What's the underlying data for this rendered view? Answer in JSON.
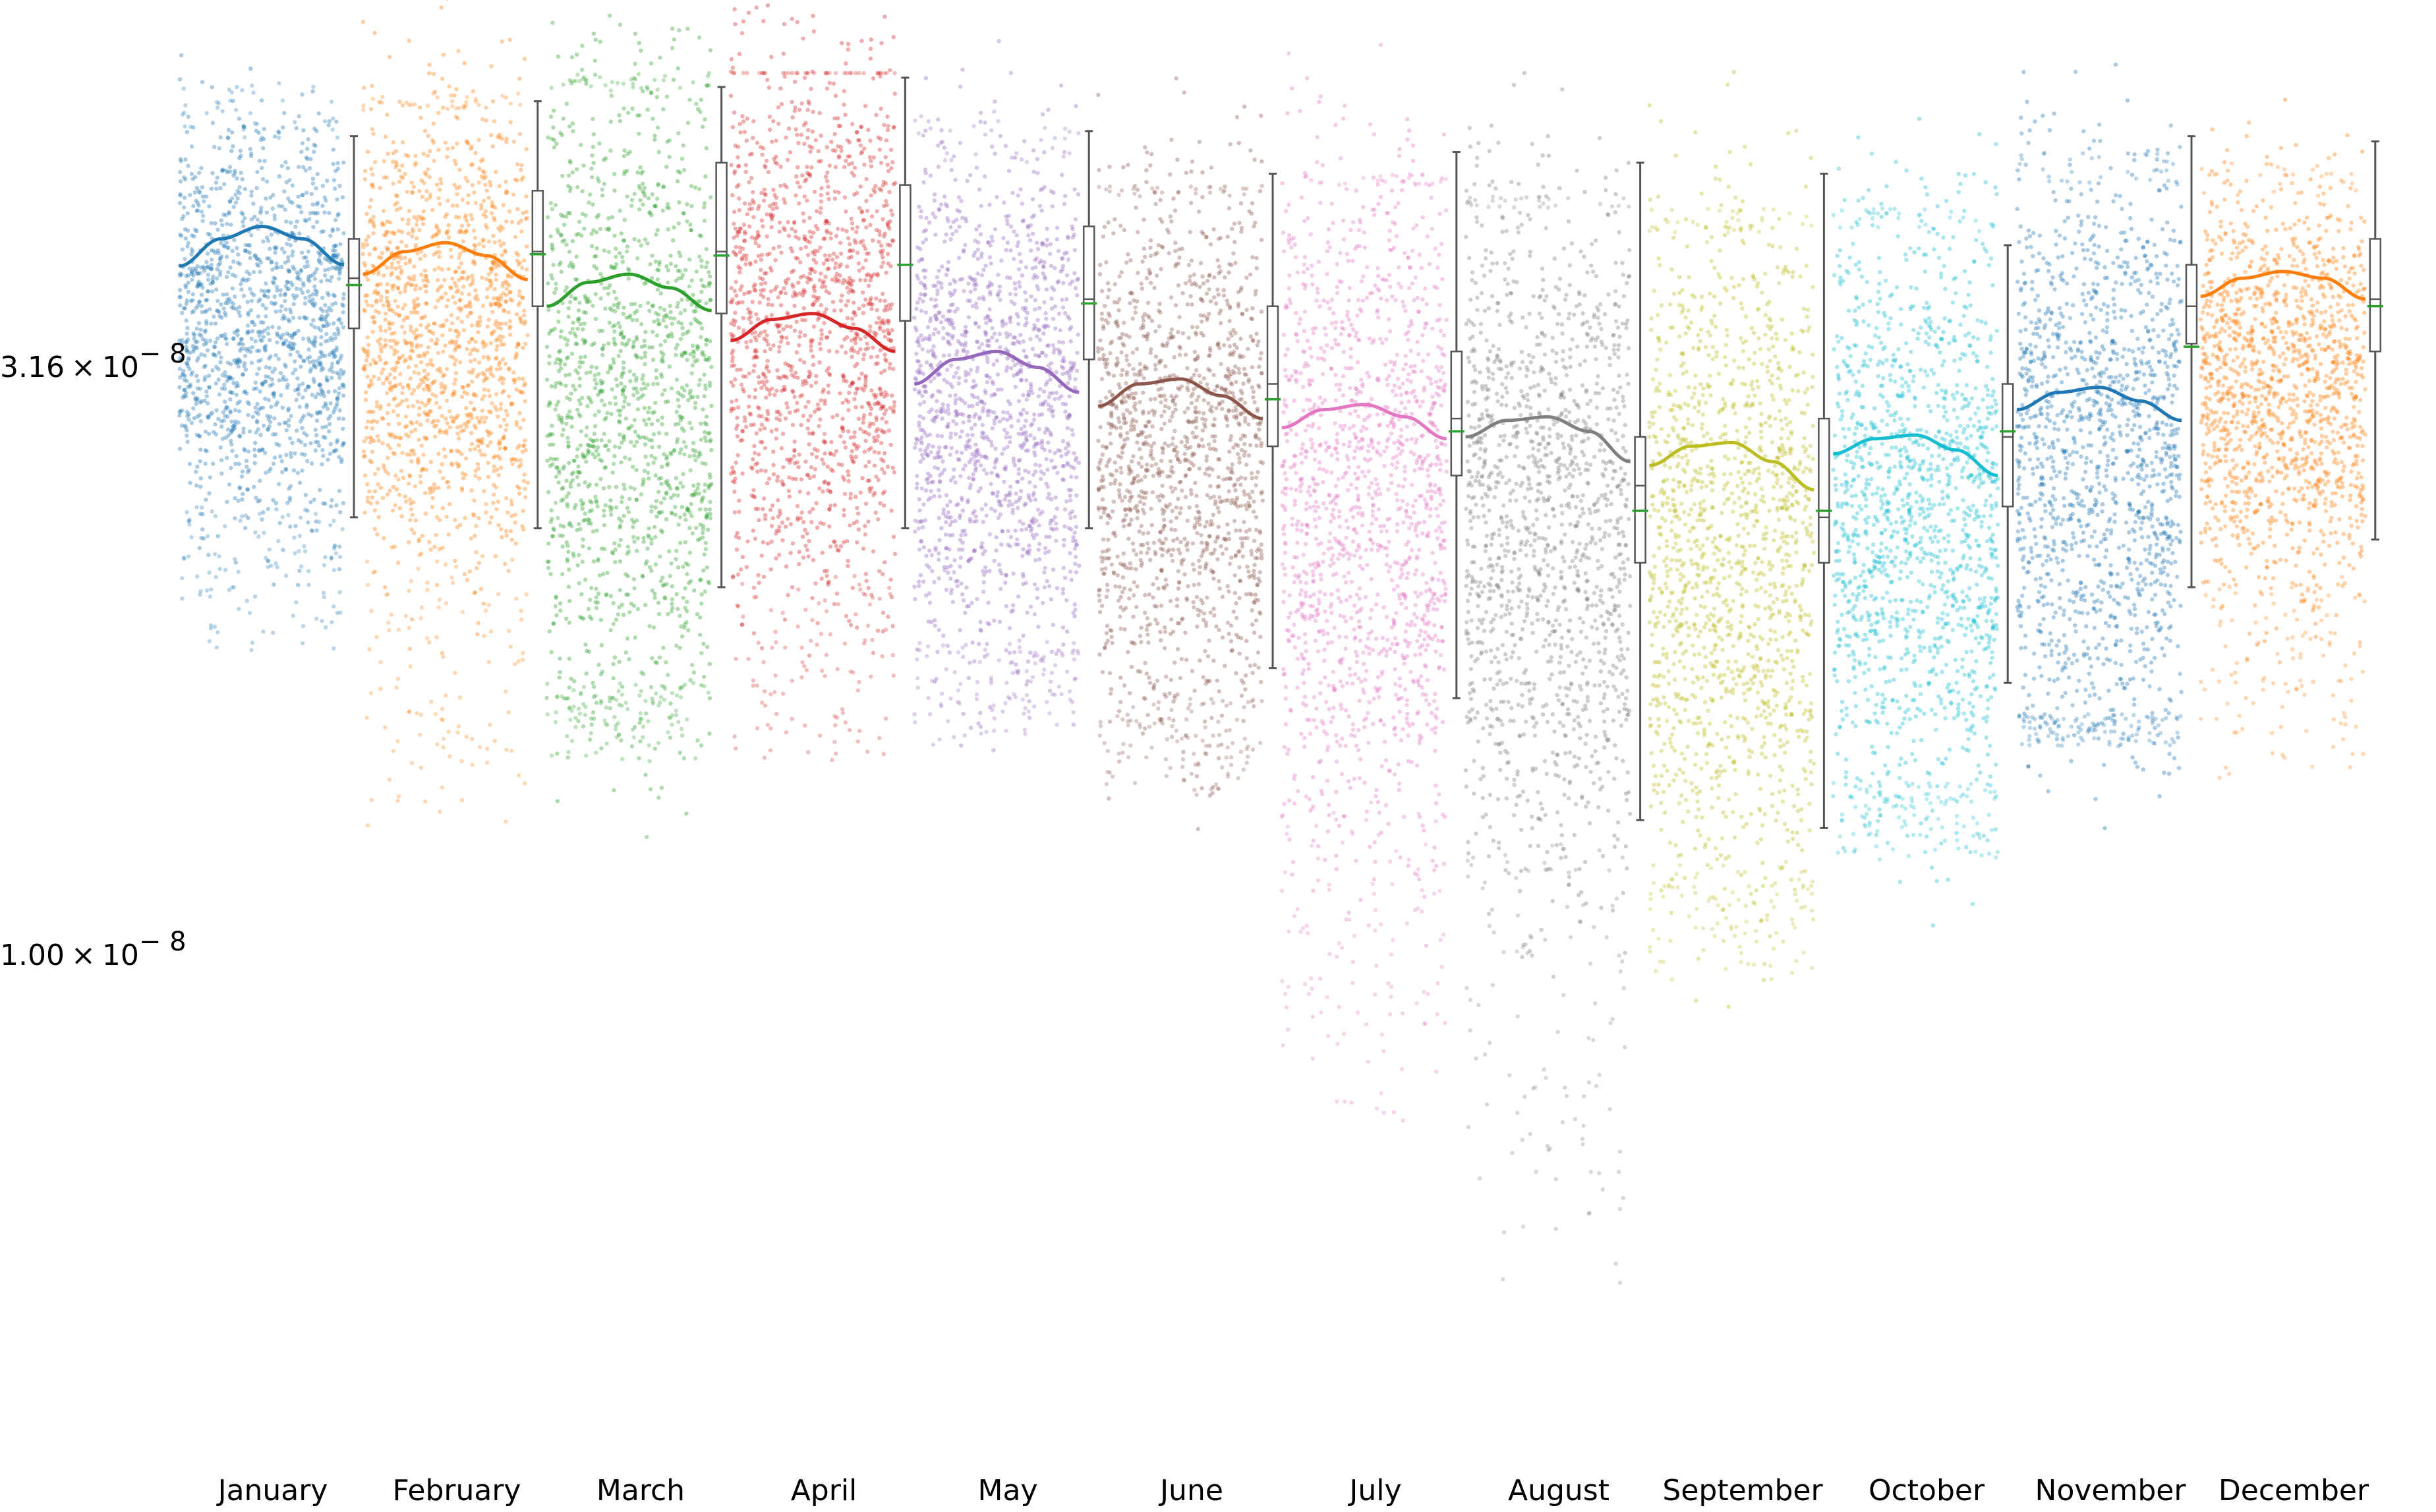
{
  "chart_data": {
    "type": "scatter",
    "subtype": "monthly strip plot with mean curve and box plot per month",
    "title": "",
    "xlabel": "",
    "ylabel": "",
    "y_scale": "log",
    "ylim": [
      4e-09,
      7e-08
    ],
    "y_ticks": [
      {
        "value": 3.16e-08,
        "mantissa": "3.16",
        "times": "×",
        "base": "10",
        "exponent": "− 8"
      },
      {
        "value": 1e-08,
        "mantissa": "1.00",
        "times": "×",
        "base": "10",
        "exponent": "− 8"
      }
    ],
    "categories": [
      "January",
      "February",
      "March",
      "April",
      "May",
      "June",
      "July",
      "August",
      "September",
      "October",
      "November",
      "December"
    ],
    "colors": [
      "#1f77b4",
      "#ff7f0e",
      "#2ca02c",
      "#d62728",
      "#9467bd",
      "#8c564b",
      "#e377c2",
      "#7f7f7f",
      "#bcbd22",
      "#17becf",
      "#1f77b4",
      "#ff7f0e"
    ],
    "grid": false,
    "legend": "none",
    "series": [
      {
        "name": "January",
        "mean_curve": [
          3.84e-08,
          4.05e-08,
          4.15e-08,
          4.05e-08,
          3.85e-08
        ],
        "box": {
          "whisker_low": 2.35e-08,
          "q1": 3.4e-08,
          "median": 3.75e-08,
          "q3": 4.05e-08,
          "whisker_high": 4.95e-08,
          "mean": 3.7e-08
        },
        "points": {
          "core_low": 2.4e-08,
          "core_high": 4.9e-08,
          "min": 1.8e-08,
          "max": 5.5e-08
        }
      },
      {
        "name": "February",
        "mean_curve": [
          3.78e-08,
          3.95e-08,
          4.02e-08,
          3.92e-08,
          3.74e-08
        ],
        "box": {
          "whisker_low": 2.3e-08,
          "q1": 3.55e-08,
          "median": 3.95e-08,
          "q3": 4.45e-08,
          "whisker_high": 5.3e-08,
          "mean": 3.93e-08
        },
        "points": {
          "core_low": 2.2e-08,
          "core_high": 5.2e-08,
          "min": 1.25e-08,
          "max": 5.4e-08
        }
      },
      {
        "name": "March",
        "mean_curve": [
          3.55e-08,
          3.72e-08,
          3.78e-08,
          3.68e-08,
          3.52e-08
        ],
        "box": {
          "whisker_low": 2.05e-08,
          "q1": 3.5e-08,
          "median": 3.95e-08,
          "q3": 4.7e-08,
          "whisker_high": 5.45e-08,
          "mean": 3.92e-08
        },
        "points": {
          "core_low": 1.7e-08,
          "core_high": 5.4e-08,
          "min": 1.45e-08,
          "max": 5.6e-08
        }
      },
      {
        "name": "April",
        "mean_curve": [
          3.32e-08,
          3.46e-08,
          3.5e-08,
          3.4e-08,
          3.25e-08
        ],
        "box": {
          "whisker_low": 2.3e-08,
          "q1": 3.45e-08,
          "median": 3.85e-08,
          "q3": 4.5e-08,
          "whisker_high": 5.55e-08,
          "mean": 3.85e-08
        },
        "points": {
          "core_low": 2.1e-08,
          "core_high": 5.6e-08,
          "min": 1.45e-08,
          "max": 5.6e-08
        }
      },
      {
        "name": "May",
        "mean_curve": [
          3.05e-08,
          3.2e-08,
          3.25e-08,
          3.15e-08,
          3e-08
        ],
        "box": {
          "whisker_low": 2.3e-08,
          "q1": 3.2e-08,
          "median": 3.6e-08,
          "q3": 4.15e-08,
          "whisker_high": 5e-08,
          "mean": 3.57e-08
        },
        "points": {
          "core_low": 1.85e-08,
          "core_high": 4.7e-08,
          "min": 1.5e-08,
          "max": 5.2e-08
        }
      },
      {
        "name": "June",
        "mean_curve": [
          2.92e-08,
          3.05e-08,
          3.08e-08,
          2.98e-08,
          2.85e-08
        ],
        "box": {
          "whisker_low": 1.75e-08,
          "q1": 2.7e-08,
          "median": 3.05e-08,
          "q3": 3.55e-08,
          "whisker_high": 4.6e-08,
          "mean": 2.96e-08
        },
        "points": {
          "core_low": 1.65e-08,
          "core_high": 4.4e-08,
          "min": 1.35e-08,
          "max": 4.5e-08
        }
      },
      {
        "name": "July",
        "mean_curve": [
          2.8e-08,
          2.9e-08,
          2.93e-08,
          2.86e-08,
          2.74e-08
        ],
        "box": {
          "whisker_low": 1.65e-08,
          "q1": 2.55e-08,
          "median": 2.85e-08,
          "q3": 3.25e-08,
          "whisker_high": 4.8e-08,
          "mean": 2.78e-08
        },
        "points": {
          "core_low": 1.35e-08,
          "core_high": 4.5e-08,
          "min": 7e-09,
          "max": 4.6e-08
        }
      },
      {
        "name": "August",
        "mean_curve": [
          2.75e-08,
          2.84e-08,
          2.86e-08,
          2.78e-08,
          2.62e-08
        ],
        "box": {
          "whisker_low": 1.3e-08,
          "q1": 2.15e-08,
          "median": 2.5e-08,
          "q3": 2.75e-08,
          "whisker_high": 4.7e-08,
          "mean": 2.38e-08
        },
        "points": {
          "core_low": 1.25e-08,
          "core_high": 4.3e-08,
          "min": 5.1e-09,
          "max": 4.4e-08
        }
      },
      {
        "name": "September",
        "mean_curve": [
          2.6e-08,
          2.7e-08,
          2.72e-08,
          2.62e-08,
          2.48e-08
        ],
        "box": {
          "whisker_low": 1.28e-08,
          "q1": 2.15e-08,
          "median": 2.35e-08,
          "q3": 2.85e-08,
          "whisker_high": 4.6e-08,
          "mean": 2.38e-08
        },
        "points": {
          "core_low": 1.2e-08,
          "core_high": 4.1e-08,
          "min": 9.5e-09,
          "max": 4.3e-08
        }
      },
      {
        "name": "October",
        "mean_curve": [
          2.66e-08,
          2.74e-08,
          2.76e-08,
          2.68e-08,
          2.55e-08
        ],
        "box": {
          "whisker_low": 1.7e-08,
          "q1": 2.4e-08,
          "median": 2.75e-08,
          "q3": 3.05e-08,
          "whisker_high": 4e-08,
          "mean": 2.78e-08
        },
        "points": {
          "core_low": 1.4e-08,
          "core_high": 4.1e-08,
          "min": 1.2e-08,
          "max": 4.3e-08
        }
      },
      {
        "name": "November",
        "mean_curve": [
          2.9e-08,
          3e-08,
          3.03e-08,
          2.95e-08,
          2.84e-08
        ],
        "box": {
          "whisker_low": 2.05e-08,
          "q1": 3.3e-08,
          "median": 3.55e-08,
          "q3": 3.85e-08,
          "whisker_high": 4.95e-08,
          "mean": 3.28e-08
        },
        "points": {
          "core_low": 1.6e-08,
          "core_high": 4.5e-08,
          "min": 1.5e-08,
          "max": 4.8e-08
        }
      },
      {
        "name": "December",
        "mean_curve": [
          3.62e-08,
          3.75e-08,
          3.8e-08,
          3.75e-08,
          3.6e-08
        ],
        "box": {
          "whisker_low": 2.25e-08,
          "q1": 3.25e-08,
          "median": 3.6e-08,
          "q3": 4.05e-08,
          "whisker_high": 4.9e-08,
          "mean": 3.55e-08
        },
        "points": {
          "core_low": 2.1e-08,
          "core_high": 4.4e-08,
          "min": 1.4e-08,
          "max": 4.7e-08
        }
      }
    ]
  }
}
